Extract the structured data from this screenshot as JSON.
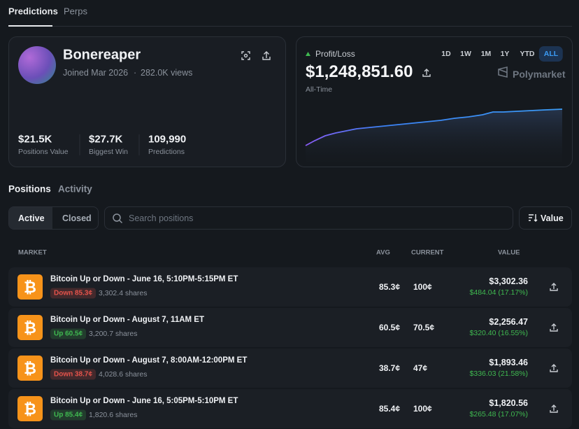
{
  "tabs": [
    "Predictions",
    "Perps"
  ],
  "profile": {
    "name": "Bonereaper",
    "joined": "Joined Mar 2026",
    "separator": "·",
    "views": "282.0K views",
    "stats": [
      {
        "value": "$21.5K",
        "label": "Positions Value"
      },
      {
        "value": "$27.7K",
        "label": "Biggest Win"
      },
      {
        "value": "109,990",
        "label": "Predictions"
      }
    ]
  },
  "pnl": {
    "label": "Profit/Loss",
    "value": "$1,248,851.60",
    "period": "All-Time",
    "ranges": [
      "1D",
      "1W",
      "1M",
      "1Y",
      "YTD",
      "ALL"
    ],
    "active_range": 5,
    "brand": "Polymarket"
  },
  "section_tabs": [
    "Positions",
    "Activity"
  ],
  "filters": [
    "Active",
    "Closed"
  ],
  "search_placeholder": "Search positions",
  "sort": "Value",
  "table": {
    "headers": [
      "MARKET",
      "AVG",
      "CURRENT",
      "VALUE"
    ],
    "rows": [
      {
        "title": "Bitcoin Up or Down - June 16, 5:10PM-5:15PM ET",
        "outcome": "Down 85.3¢",
        "outcome_color": "#e5534b",
        "shares": "3,302.4 shares",
        "avg": "85.3¢",
        "current": "100¢",
        "value": "$3,302.36",
        "pnl": "$484.04 (17.17%)"
      },
      {
        "title": "Bitcoin Up or Down - August 7, 11AM ET",
        "outcome": "Up 60.5¢",
        "outcome_color": "#3fb950",
        "shares": "3,200.7 shares",
        "avg": "60.5¢",
        "current": "70.5¢",
        "value": "$2,256.47",
        "pnl": "$320.40 (16.55%)"
      },
      {
        "title": "Bitcoin Up or Down - August 7, 8:00AM-12:00PM ET",
        "outcome": "Down 38.7¢",
        "outcome_color": "#e5534b",
        "shares": "4,028.6 shares",
        "avg": "38.7¢",
        "current": "47¢",
        "value": "$1,893.46",
        "pnl": "$336.03 (21.58%)"
      },
      {
        "title": "Bitcoin Up or Down - June 16, 5:05PM-5:10PM ET",
        "outcome": "Up 85.4¢",
        "outcome_color": "#3fb950",
        "shares": "1,820.6 shares",
        "avg": "85.4¢",
        "current": "100¢",
        "value": "$1,820.56",
        "pnl": "$265.48 (17.07%)"
      }
    ]
  }
}
